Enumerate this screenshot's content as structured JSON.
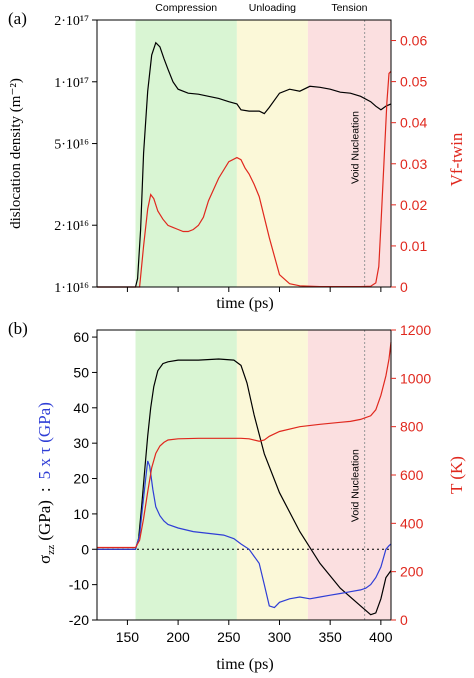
{
  "figure": {
    "panel_a_label": "(a)",
    "panel_b_label": "(b)",
    "colors": {
      "compression": "#d9f5d3",
      "unloading": "#fbf8d8",
      "tension": "#fbdfe0",
      "left_series": "#000000",
      "right_series": "#e0281e",
      "shear_series": "#2f3ed6",
      "axis_right": "#e0281e",
      "axis_left_b_tau": "#2f3ed6"
    }
  },
  "chart_data": [
    {
      "type": "line",
      "panel": "(a)",
      "phases": [
        {
          "label": "Compression",
          "start": 158,
          "end": 258
        },
        {
          "label": "Unloading",
          "start": 258,
          "end": 328
        },
        {
          "label": "Tension",
          "start": 328,
          "end": 410
        }
      ],
      "annotation": {
        "text": "Void Nucleation",
        "x": 384
      },
      "xlabel": "time (ps)",
      "xlim": [
        120,
        410
      ],
      "ylabel_left": "dislocation density (m⁻²)",
      "yscale_left": "log",
      "ylim_left": [
        1e+16,
        2e+17
      ],
      "yticks_left": [
        1e+16,
        2e+16,
        5e+16,
        1e+17,
        2e+17
      ],
      "yticklabels_left": [
        "1·10¹⁶",
        "2·10¹⁶",
        "5·10¹⁶",
        "1·10¹⁷",
        "2·10¹⁷"
      ],
      "ylabel_right": "Vf-twin",
      "ylim_right": [
        0,
        0.065
      ],
      "yticks_right": [
        "0",
        "0.01",
        "0.02",
        "0.03",
        "0.04",
        "0.05",
        "0.06"
      ],
      "series": [
        {
          "axis": "left",
          "x": [
            120,
            158,
            160,
            163,
            166,
            170,
            174,
            178,
            182,
            186,
            190,
            195,
            200,
            210,
            220,
            230,
            240,
            250,
            258,
            262,
            270,
            280,
            285,
            290,
            300,
            310,
            320,
            330,
            340,
            350,
            360,
            370,
            380,
            390,
            395,
            400,
            405,
            410
          ],
          "values": [
            1e+16,
            1e+16,
            1.1e+16,
            1.9e+16,
            4.5e+16,
            9e+16,
            1.35e+17,
            1.55e+17,
            1.48e+17,
            1.3e+17,
            1.15e+17,
            1e+17,
            9.2e+16,
            8.8e+16,
            8.7e+16,
            8.5e+16,
            8.3e+16,
            8e+16,
            7.8e+16,
            7.3e+16,
            7.2e+16,
            7.2e+16,
            7e+16,
            7.5e+16,
            8.8e+16,
            9.2e+16,
            9e+16,
            9.5e+16,
            9.4e+16,
            9.2e+16,
            8.9e+16,
            8.8e+16,
            8.5e+16,
            8e+16,
            7.6e+16,
            7.3e+16,
            7.6e+16,
            7.8e+16
          ]
        },
        {
          "axis": "right",
          "x": [
            120,
            162,
            166,
            170,
            173,
            176,
            180,
            185,
            190,
            195,
            200,
            205,
            210,
            215,
            220,
            225,
            230,
            240,
            250,
            258,
            262,
            266,
            270,
            275,
            280,
            290,
            300,
            310,
            320,
            330,
            340,
            350,
            360,
            370,
            380,
            390,
            395,
            398,
            400,
            403,
            406,
            408,
            410
          ],
          "values": [
            0,
            0,
            0.01,
            0.019,
            0.0225,
            0.0215,
            0.0185,
            0.0165,
            0.015,
            0.0145,
            0.014,
            0.0135,
            0.0135,
            0.014,
            0.015,
            0.017,
            0.021,
            0.0265,
            0.0305,
            0.0315,
            0.031,
            0.029,
            0.0275,
            0.025,
            0.022,
            0.012,
            0.003,
            0.0008,
            0.0003,
            0.0002,
            0.0001,
            0.0001,
            0.0001,
            0.0001,
            0.0001,
            0.0002,
            0.001,
            0.005,
            0.015,
            0.03,
            0.045,
            0.052,
            0.0525
          ]
        }
      ]
    },
    {
      "type": "line",
      "panel": "(b)",
      "phases": [
        {
          "label": "Compression",
          "start": 158,
          "end": 258
        },
        {
          "label": "Unloading",
          "start": 258,
          "end": 328
        },
        {
          "label": "Tension",
          "start": 328,
          "end": 410
        }
      ],
      "annotation": {
        "text": "Void Nucleation",
        "x": 384
      },
      "xlabel": "time (ps)",
      "xlim": [
        120,
        410
      ],
      "xticks": [
        150,
        200,
        250,
        300,
        350,
        400
      ],
      "ylabel_left_parts": {
        "sigma": "σ",
        "sigma_sub": "zz",
        "sigma_unit": " (GPa)",
        "separator": ":",
        "tau": "5 x τ (GPa)"
      },
      "ylim_left": [
        -20,
        62
      ],
      "yticks_left": [
        -20,
        -10,
        0,
        10,
        20,
        30,
        40,
        50,
        60
      ],
      "zero_line": true,
      "ylabel_right": "T (K)",
      "ylim_right": [
        0,
        1200
      ],
      "yticks_right": [
        0,
        200,
        400,
        600,
        800,
        1000,
        1200
      ],
      "series": [
        {
          "axis": "left",
          "color_role": "left_series",
          "x": [
            120,
            158,
            161,
            164,
            167,
            170,
            173,
            176,
            180,
            185,
            190,
            200,
            220,
            240,
            255,
            262,
            268,
            275,
            285,
            300,
            320,
            340,
            360,
            380,
            390,
            395,
            400,
            405,
            410
          ],
          "values": [
            0,
            0,
            3,
            12,
            22,
            32,
            40,
            46,
            50.5,
            52.5,
            53,
            53.5,
            53.5,
            53.8,
            53.5,
            52,
            47,
            38,
            27,
            16,
            5,
            -4,
            -11,
            -16,
            -18.5,
            -18,
            -14,
            -8,
            -6
          ]
        },
        {
          "axis": "left",
          "color_role": "shear_series",
          "x": [
            120,
            158,
            162,
            165,
            168,
            170,
            172,
            175,
            178,
            182,
            186,
            190,
            200,
            215,
            230,
            245,
            255,
            262,
            270,
            280,
            285,
            290,
            295,
            300,
            310,
            320,
            330,
            340,
            350,
            360,
            370,
            380,
            385,
            390,
            395,
            400,
            405,
            408,
            410
          ],
          "values": [
            0,
            0,
            4,
            12,
            20,
            25,
            23.5,
            17,
            12,
            9.5,
            8,
            7,
            6,
            5,
            4.5,
            4,
            3,
            1.5,
            0,
            -4,
            -10,
            -16,
            -16.5,
            -15,
            -14,
            -13.5,
            -14,
            -13.5,
            -13,
            -12.5,
            -12,
            -11.5,
            -11,
            -10,
            -8,
            -5,
            0,
            1,
            1.5
          ]
        },
        {
          "axis": "right",
          "color_role": "right_series",
          "x": [
            120,
            158,
            162,
            166,
            170,
            174,
            178,
            182,
            186,
            190,
            200,
            220,
            240,
            255,
            262,
            270,
            280,
            285,
            290,
            300,
            320,
            340,
            360,
            370,
            380,
            390,
            395,
            400,
            405,
            408,
            410
          ],
          "values": [
            300,
            300,
            330,
            420,
            530,
            630,
            690,
            720,
            735,
            745,
            750,
            752,
            752,
            752,
            752,
            750,
            740,
            745,
            760,
            780,
            800,
            810,
            818,
            822,
            830,
            845,
            870,
            930,
            1010,
            1080,
            1150
          ]
        }
      ]
    }
  ]
}
